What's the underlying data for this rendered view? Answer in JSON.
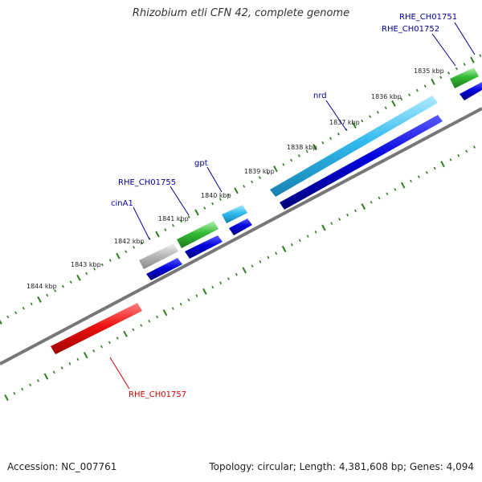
{
  "title": "Rhizobium etli CFN 42, complete genome",
  "footer": {
    "accession": "Accession: NC_007761",
    "summary": "Topology: circular; Length: 4,381,608 bp; Genes: 4,094"
  },
  "scale_labels": [
    "1835 kbp",
    "1836 kbp",
    "1837 kbp",
    "1838 kbp",
    "1839 kbp",
    "1840 kbp",
    "1841 kbp",
    "1842 kbp",
    "1843 kbp",
    "1844 kbp"
  ],
  "genes": [
    {
      "label": "RHE_CH01751",
      "color": "#000099"
    },
    {
      "label": "RHE_CH01752",
      "color": "#000099"
    },
    {
      "label": "nrd",
      "color": "#000099"
    },
    {
      "label": "gpt",
      "color": "#000099"
    },
    {
      "label": "RHE_CH01755",
      "color": "#000099"
    },
    {
      "label": "cinA1",
      "color": "#000099"
    },
    {
      "label": "RHE_CH01757",
      "color": "#cc0000"
    }
  ],
  "colors": {
    "tick": "#2e7d1e",
    "backbone": "#777777",
    "cds_blue": "#0000dd",
    "cyan": "#33bbee",
    "green": "#33bb33",
    "gray": "#bbbbbb",
    "red": "#ee1111"
  }
}
